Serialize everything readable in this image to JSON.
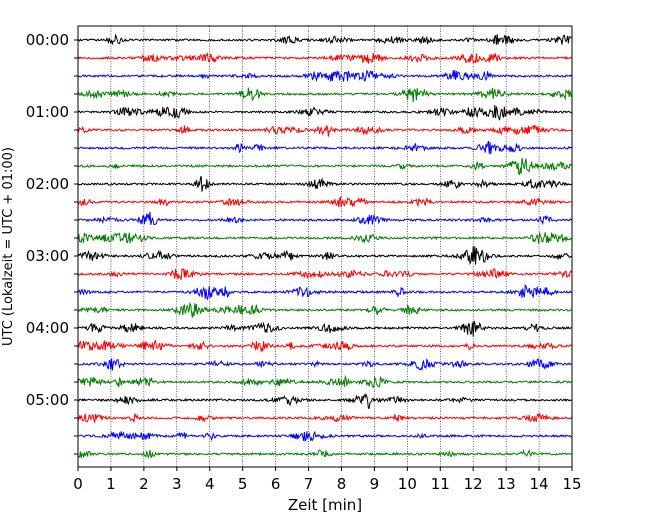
{
  "chart_data": {
    "type": "line",
    "title": "",
    "xlabel": "Zeit  [min]",
    "ylabel": "UTC (Lokalzeit = UTC + 01:00)",
    "xlim": [
      0,
      15
    ],
    "x_ticks": [
      0,
      1,
      2,
      3,
      4,
      5,
      6,
      7,
      8,
      9,
      10,
      11,
      12,
      13,
      14,
      15
    ],
    "x_tick_labels": [
      "0",
      "1",
      "2",
      "3",
      "4",
      "5",
      "6",
      "7",
      "8",
      "9",
      "10",
      "11",
      "12",
      "13",
      "14",
      "15"
    ],
    "y_tick_labels": [
      "00:00",
      "01:00",
      "02:00",
      "03:00",
      "04:00",
      "05:00"
    ],
    "vertical_grid": true,
    "trace_interval_minutes": 15,
    "trace_count": 24,
    "trace_colors": [
      "#000000",
      "#ff0000",
      "#0000ff",
      "#008000"
    ],
    "traces": [
      {
        "start": "00:00",
        "color": "#000000"
      },
      {
        "start": "00:15",
        "color": "#ff0000"
      },
      {
        "start": "00:30",
        "color": "#0000ff"
      },
      {
        "start": "00:45",
        "color": "#008000"
      },
      {
        "start": "01:00",
        "color": "#000000"
      },
      {
        "start": "01:15",
        "color": "#ff0000"
      },
      {
        "start": "01:30",
        "color": "#0000ff"
      },
      {
        "start": "01:45",
        "color": "#008000"
      },
      {
        "start": "02:00",
        "color": "#000000"
      },
      {
        "start": "02:15",
        "color": "#ff0000"
      },
      {
        "start": "02:30",
        "color": "#0000ff"
      },
      {
        "start": "02:45",
        "color": "#008000"
      },
      {
        "start": "03:00",
        "color": "#000000"
      },
      {
        "start": "03:15",
        "color": "#ff0000"
      },
      {
        "start": "03:30",
        "color": "#0000ff"
      },
      {
        "start": "03:45",
        "color": "#008000"
      },
      {
        "start": "04:00",
        "color": "#000000"
      },
      {
        "start": "04:15",
        "color": "#ff0000"
      },
      {
        "start": "04:30",
        "color": "#0000ff"
      },
      {
        "start": "04:45",
        "color": "#008000"
      },
      {
        "start": "05:00",
        "color": "#000000"
      },
      {
        "start": "05:15",
        "color": "#ff0000"
      },
      {
        "start": "05:30",
        "color": "#0000ff"
      },
      {
        "start": "05:45",
        "color": "#008000"
      }
    ]
  }
}
